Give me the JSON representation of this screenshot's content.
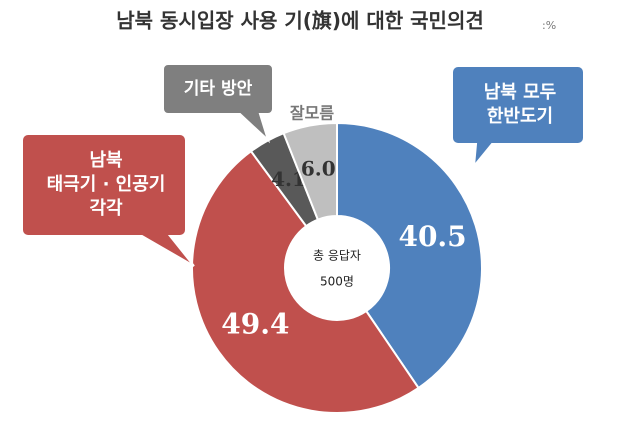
{
  "chart_data": {
    "type": "donut",
    "title": "남북 동시입장 사용 기(旗)에 대한 국민의견",
    "unit": ":%",
    "categories": [
      [
        "남북 모두",
        "한반도기"
      ],
      [
        "남북",
        "태극기 · 인공기",
        "각각"
      ],
      [
        "기타 방안"
      ],
      [
        "잘모름"
      ]
    ],
    "values": [
      40.5,
      49.4,
      4.1,
      6.0
    ],
    "value_labels": [
      "40.5",
      "49.4",
      "4.1",
      "6.0"
    ],
    "colors": [
      "#4f81bd",
      "#c0504d",
      "#595959",
      "#bfbfbf"
    ],
    "center_text": [
      "총 응답자",
      "500명"
    ]
  }
}
